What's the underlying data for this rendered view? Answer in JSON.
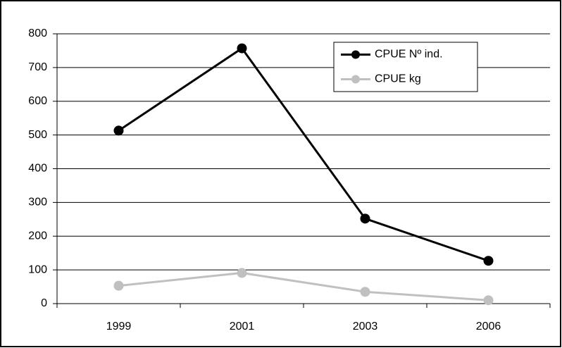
{
  "chart_data": {
    "type": "line",
    "categories": [
      "1999",
      "2001",
      "2003",
      "2006"
    ],
    "series": [
      {
        "name": "CPUE Nº ind.",
        "color": "#000000",
        "values": [
          513,
          757,
          252,
          127
        ]
      },
      {
        "name": "CPUE kg",
        "color": "#c0c0c0",
        "values": [
          53,
          91,
          35,
          10
        ]
      }
    ],
    "ylim": [
      0,
      800
    ],
    "yticks": [
      0,
      100,
      200,
      300,
      400,
      500,
      600,
      700,
      800
    ],
    "grid": true,
    "legend": "top-right"
  }
}
